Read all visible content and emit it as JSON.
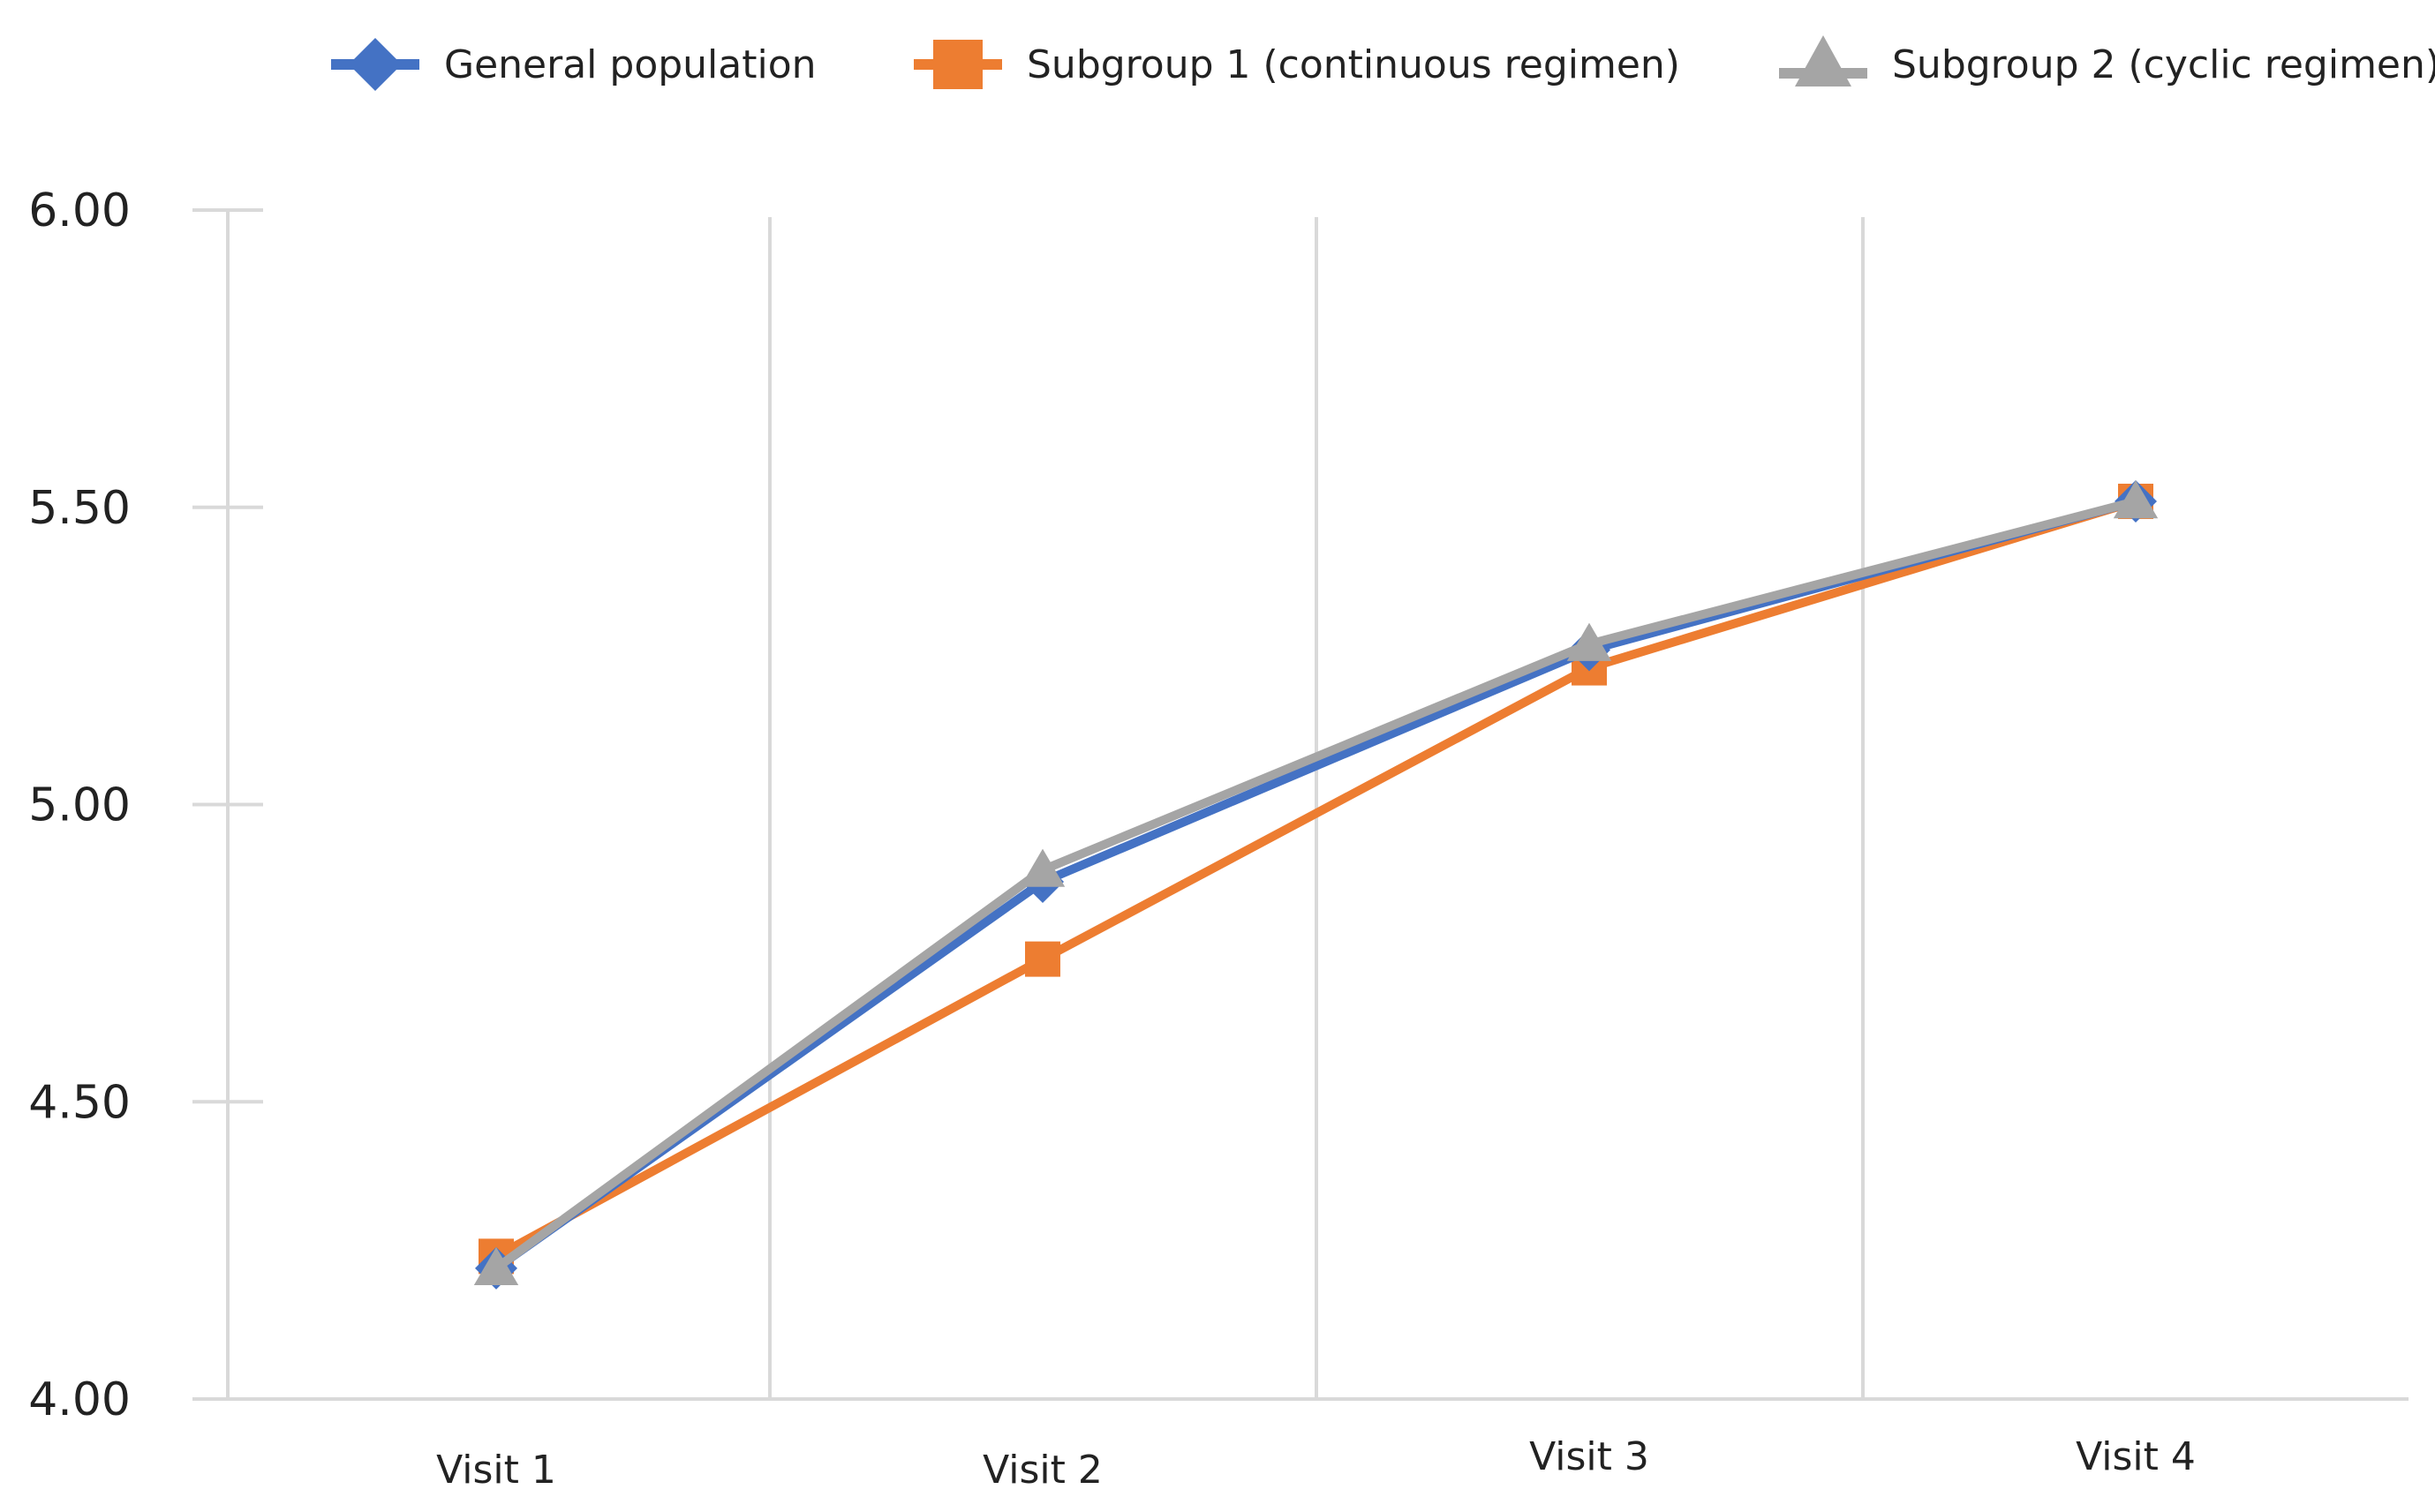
{
  "chart_data": {
    "type": "line",
    "title": "",
    "xlabel": "",
    "ylabel": "",
    "categories": [
      "Visit 1",
      "Visit 2",
      "Visit 3",
      "Visit 4"
    ],
    "ylim": [
      4.0,
      6.0
    ],
    "yticks": [
      "4.00",
      "4.50",
      "5.00",
      "5.50",
      "6.00"
    ],
    "grid": "vertical",
    "legend_position": "top",
    "series": [
      {
        "name": "General population",
        "values": [
          4.22,
          4.87,
          5.26,
          5.51
        ],
        "color": "#4472C4",
        "marker": "diamond"
      },
      {
        "name": "Subgroup 1 (continuous regimen)",
        "values": [
          4.24,
          4.74,
          5.23,
          5.51
        ],
        "color": "#ED7D31",
        "marker": "square"
      },
      {
        "name": "Subgroup 2 (cyclic regimen)",
        "values": [
          4.22,
          4.89,
          5.27,
          5.51
        ],
        "color": "#A5A5A5",
        "marker": "triangle"
      }
    ]
  }
}
